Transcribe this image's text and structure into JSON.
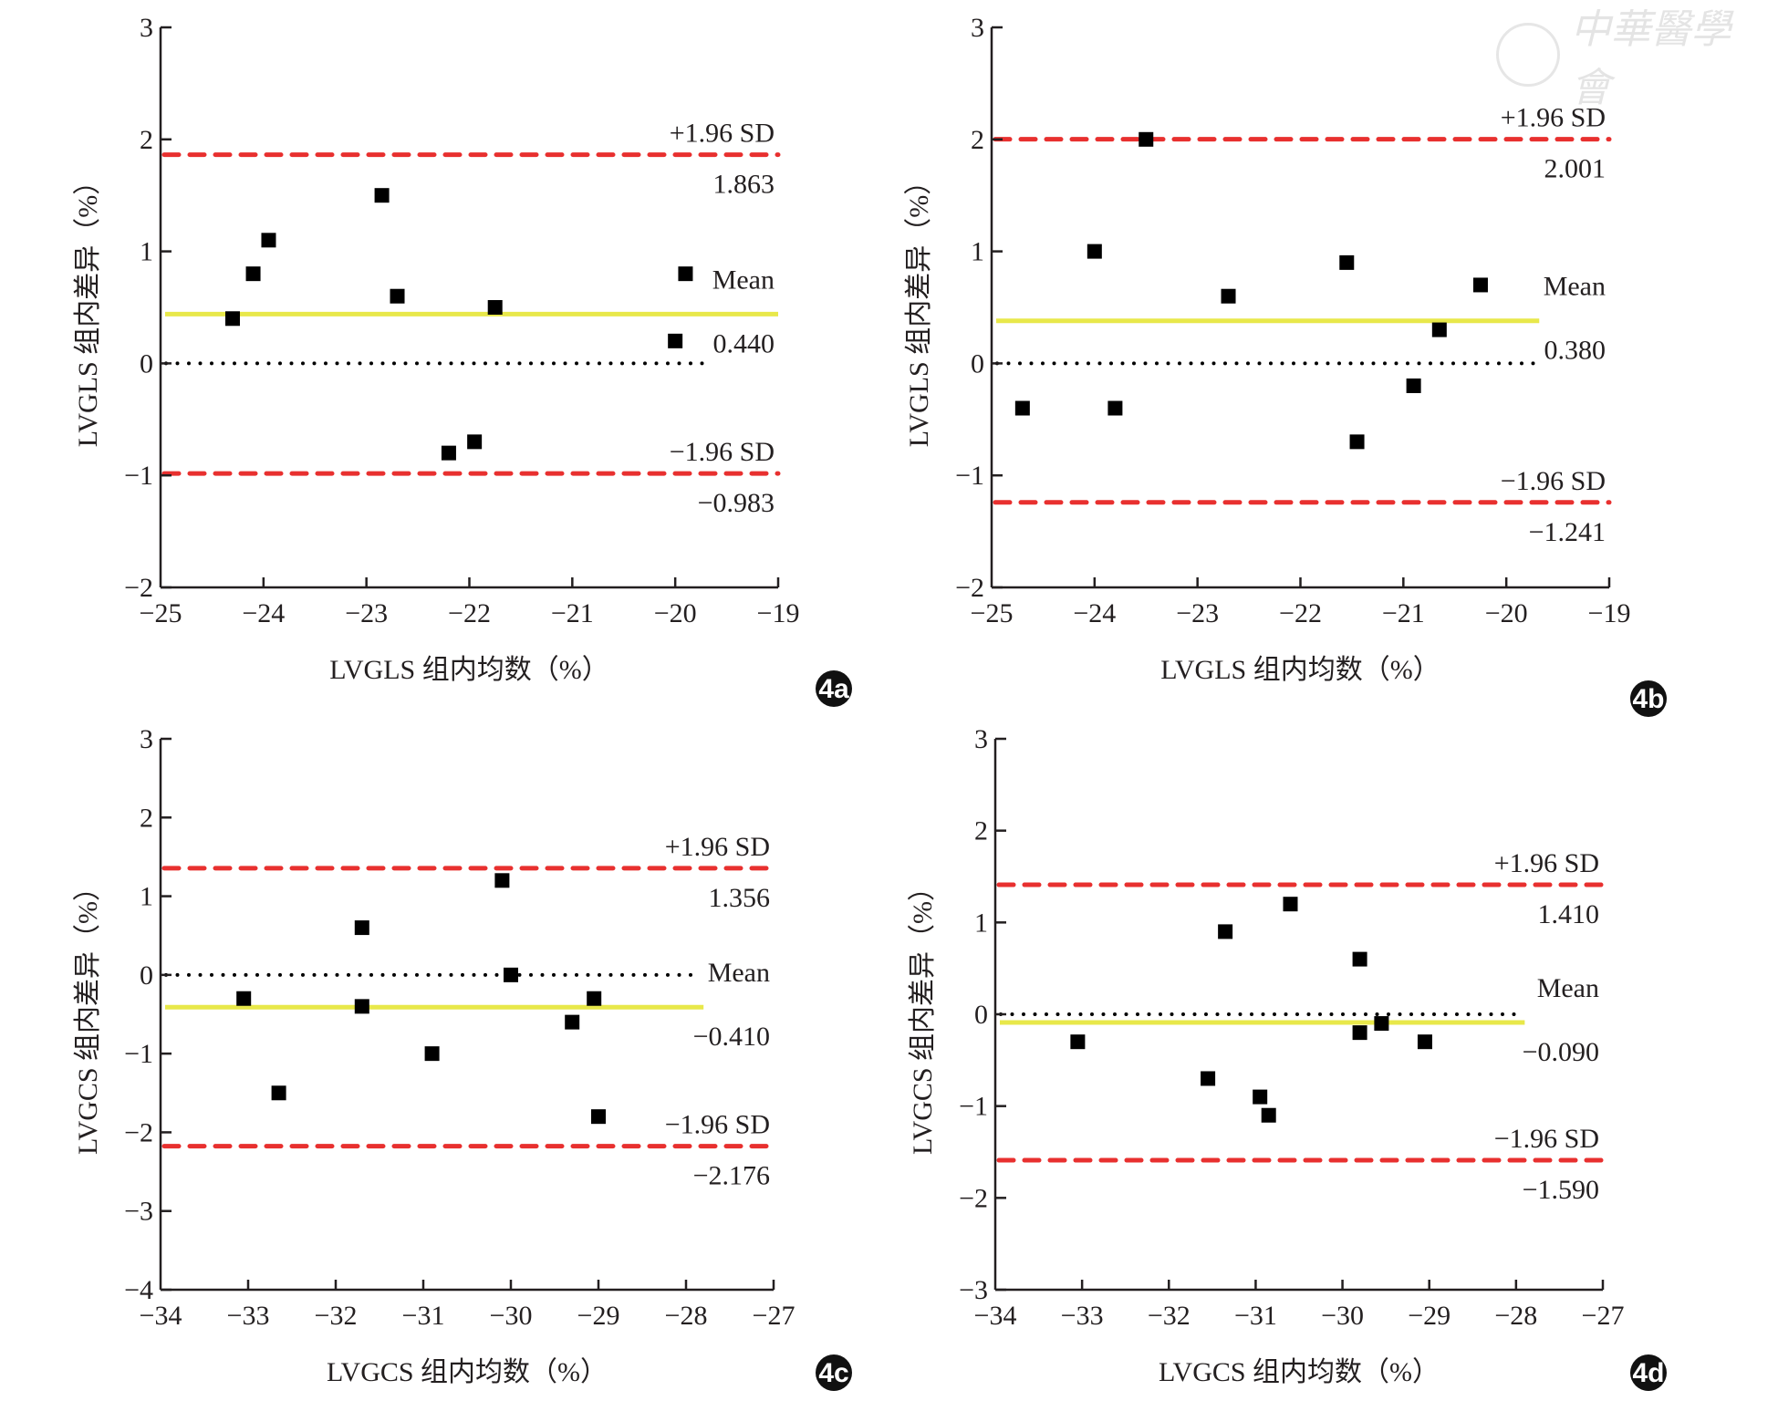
{
  "figure": {
    "watermark": "中華醫學會",
    "colors": {
      "limits": "#e8302f",
      "mean": "#e8e84a",
      "zero": "#000000",
      "points": "#000000",
      "axis": "#231f20"
    }
  },
  "chart_data": [
    {
      "id": "4a",
      "type": "scatter",
      "badge": "4a",
      "xlabel": "LVGLS 组内均数（%）",
      "ylabel": "LVGLS 组内差异（%）",
      "xlim": [
        -25,
        -19
      ],
      "ylim": [
        -2,
        3
      ],
      "xticks": [
        -25,
        -24,
        -23,
        -22,
        -21,
        -20,
        -19
      ],
      "yticks": [
        -2,
        -1,
        0,
        1,
        2,
        3
      ],
      "xtick_labels": [
        "−25",
        "−24",
        "−23",
        "−22",
        "−21",
        "−20",
        "−19"
      ],
      "ytick_labels": [
        "−2",
        "−1",
        "0",
        "1",
        "2",
        "3"
      ],
      "points": [
        {
          "x": -24.3,
          "y": 0.4
        },
        {
          "x": -24.1,
          "y": 0.8
        },
        {
          "x": -23.95,
          "y": 1.1
        },
        {
          "x": -22.85,
          "y": 1.5
        },
        {
          "x": -22.7,
          "y": 0.6
        },
        {
          "x": -22.2,
          "y": -0.8
        },
        {
          "x": -21.95,
          "y": -0.7
        },
        {
          "x": -21.75,
          "y": 0.5
        },
        {
          "x": -20.0,
          "y": 0.2
        },
        {
          "x": -19.9,
          "y": 0.8
        }
      ],
      "upper_loa": 1.863,
      "mean": 0.44,
      "lower_loa": -0.983,
      "labels": {
        "upper_title": "+1.96 SD",
        "upper_value": "1.863",
        "mean_title": "Mean",
        "mean_value": "0.440",
        "lower_title": "−1.96 SD",
        "lower_value": "−0.983"
      },
      "mean_line_end_x": -19.0,
      "zero_line_end_x": -19.73,
      "legend": "none",
      "grid": false
    },
    {
      "id": "4b",
      "type": "scatter",
      "badge": "4b",
      "xlabel": "LVGLS 组内均数（%）",
      "ylabel": "LVGLS 组内差异（%）",
      "xlim": [
        -25,
        -19
      ],
      "ylim": [
        -2,
        3
      ],
      "xticks": [
        -25,
        -24,
        -23,
        -22,
        -21,
        -20,
        -19
      ],
      "yticks": [
        -2,
        -1,
        0,
        1,
        2,
        3
      ],
      "xtick_labels": [
        "−25",
        "−24",
        "−23",
        "−22",
        "−21",
        "−20",
        "−19"
      ],
      "ytick_labels": [
        "−2",
        "−1",
        "0",
        "1",
        "2",
        "3"
      ],
      "points": [
        {
          "x": -24.7,
          "y": -0.4
        },
        {
          "x": -24.0,
          "y": 1.0
        },
        {
          "x": -23.8,
          "y": -0.4
        },
        {
          "x": -23.5,
          "y": 2.0
        },
        {
          "x": -22.7,
          "y": 0.6
        },
        {
          "x": -21.55,
          "y": 0.9
        },
        {
          "x": -21.45,
          "y": -0.7
        },
        {
          "x": -20.9,
          "y": -0.2
        },
        {
          "x": -20.65,
          "y": 0.3
        },
        {
          "x": -20.25,
          "y": 0.7
        }
      ],
      "upper_loa": 2.001,
      "mean": 0.38,
      "lower_loa": -1.241,
      "labels": {
        "upper_title": "+1.96 SD",
        "upper_value": "2.001",
        "mean_title": "Mean",
        "mean_value": "0.380",
        "lower_title": "−1.96 SD",
        "lower_value": "−1.241"
      },
      "mean_line_end_x": -19.68,
      "zero_line_end_x": -19.72,
      "legend": "none",
      "grid": false
    },
    {
      "id": "4c",
      "type": "scatter",
      "badge": "4c",
      "xlabel": "LVGCS 组内均数（%）",
      "ylabel": "LVGCS 组内差异（%）",
      "xlim": [
        -34,
        -27
      ],
      "ylim": [
        -4,
        3
      ],
      "xticks": [
        -34,
        -33,
        -32,
        -31,
        -30,
        -29,
        -28,
        -27
      ],
      "yticks": [
        -4,
        -3,
        -2,
        -1,
        0,
        1,
        2,
        3
      ],
      "xtick_labels": [
        "−34",
        "−33",
        "−32",
        "−31",
        "−30",
        "−29",
        "−28",
        "−27"
      ],
      "ytick_labels": [
        "−4",
        "−3",
        "−2",
        "−1",
        "0",
        "1",
        "2",
        "3"
      ],
      "points": [
        {
          "x": -33.05,
          "y": -0.3
        },
        {
          "x": -32.65,
          "y": -1.5
        },
        {
          "x": -31.7,
          "y": 0.6
        },
        {
          "x": -31.7,
          "y": -0.4
        },
        {
          "x": -30.9,
          "y": -1.0
        },
        {
          "x": -30.1,
          "y": 1.2
        },
        {
          "x": -30.0,
          "y": 0.0
        },
        {
          "x": -29.3,
          "y": -0.6
        },
        {
          "x": -29.05,
          "y": -0.3
        },
        {
          "x": -29.0,
          "y": -1.8
        }
      ],
      "upper_loa": 1.356,
      "mean": -0.41,
      "lower_loa": -2.176,
      "labels": {
        "upper_title": "+1.96 SD",
        "upper_value": "1.356",
        "mean_title": "Mean",
        "mean_value": "−0.410",
        "lower_title": "−1.96 SD",
        "lower_value": "−2.176"
      },
      "mean_line_end_x": -27.8,
      "zero_line_end_x": -27.85,
      "legend": "none",
      "grid": false
    },
    {
      "id": "4d",
      "type": "scatter",
      "badge": "4d",
      "xlabel": "LVGCS 组内均数（%）",
      "ylabel": "LVGCS 组内差异（%）",
      "xlim": [
        -34,
        -27
      ],
      "ylim": [
        -3,
        3
      ],
      "xticks": [
        -34,
        -33,
        -32,
        -31,
        -30,
        -29,
        -28,
        -27
      ],
      "yticks": [
        -3,
        -2,
        -1,
        0,
        1,
        2,
        3
      ],
      "xtick_labels": [
        "−34",
        "−33",
        "−32",
        "−31",
        "−30",
        "−29",
        "−28",
        "−27"
      ],
      "ytick_labels": [
        "−3",
        "−2",
        "−1",
        "0",
        "1",
        "2",
        "3"
      ],
      "points": [
        {
          "x": -33.05,
          "y": -0.3
        },
        {
          "x": -31.55,
          "y": -0.7
        },
        {
          "x": -31.35,
          "y": 0.9
        },
        {
          "x": -30.95,
          "y": -0.9
        },
        {
          "x": -30.85,
          "y": -1.1
        },
        {
          "x": -30.6,
          "y": 1.2
        },
        {
          "x": -29.8,
          "y": 0.6
        },
        {
          "x": -29.8,
          "y": -0.2
        },
        {
          "x": -29.55,
          "y": -0.1
        },
        {
          "x": -29.05,
          "y": -0.3
        }
      ],
      "upper_loa": 1.41,
      "mean": -0.09,
      "lower_loa": -1.59,
      "labels": {
        "upper_title": "+1.96 SD",
        "upper_value": "1.410",
        "mean_title": "Mean",
        "mean_value": "−0.090",
        "lower_title": "−1.96 SD",
        "lower_value": "−1.590"
      },
      "mean_line_end_x": -27.9,
      "zero_line_end_x": -28.0,
      "legend": "none",
      "grid": false
    }
  ]
}
